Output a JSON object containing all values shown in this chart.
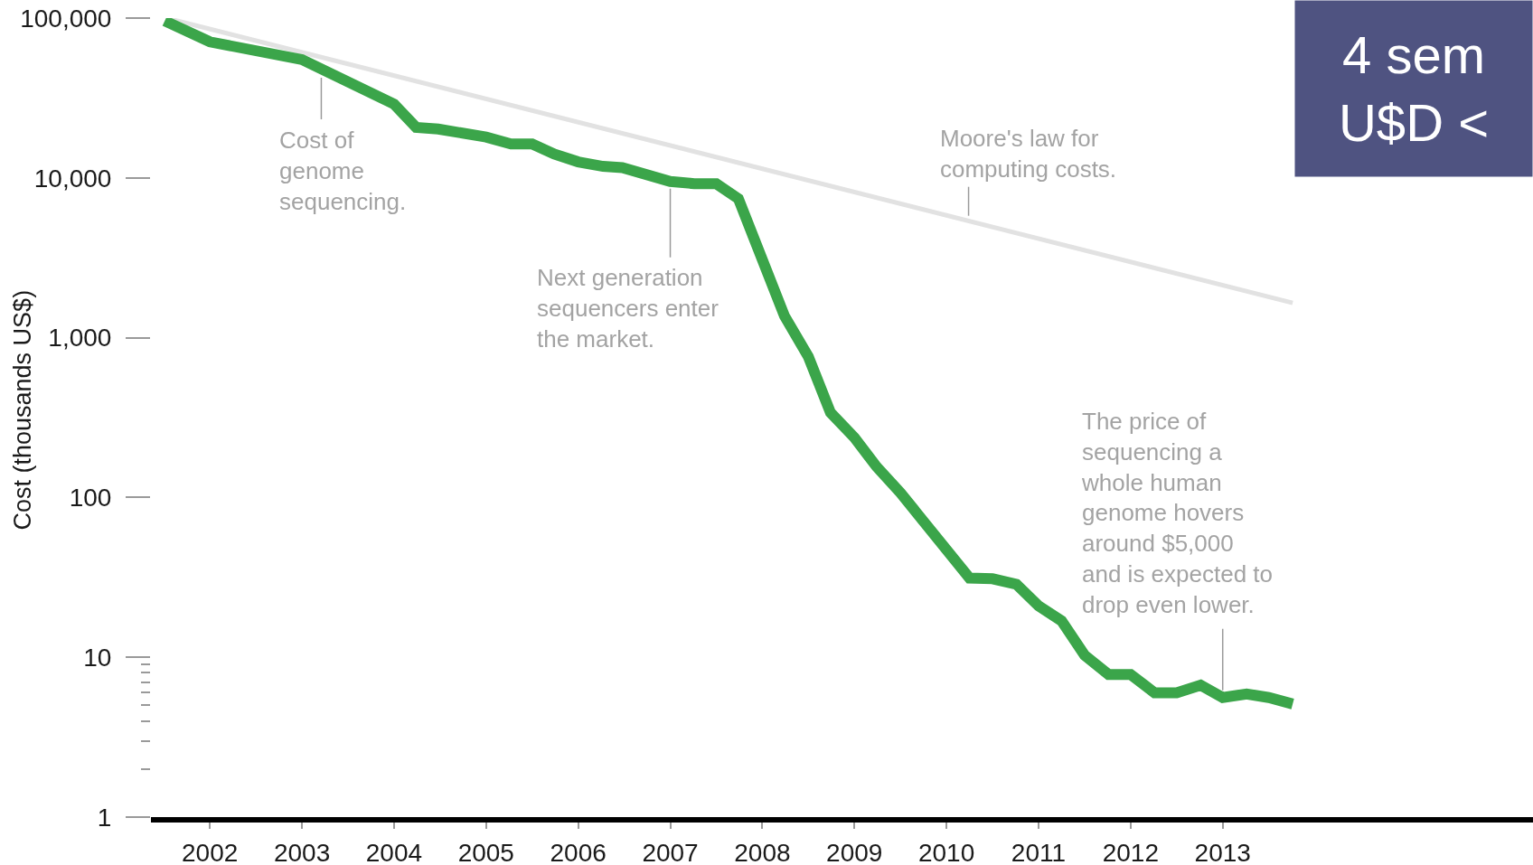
{
  "chart_data": {
    "type": "line",
    "ylabel": "Cost (thousands US$)",
    "log": true,
    "marker": "none",
    "line_style": "solid",
    "xlim": [
      2001.36,
      2016.37
    ],
    "xticks": [
      2002,
      2003,
      2004,
      2005,
      2006,
      2007,
      2008,
      2009,
      2010,
      2011,
      2012,
      2013
    ],
    "ylim": [
      1,
      100000
    ],
    "yticks": [
      1,
      {
        "value": 2,
        "label": null
      },
      {
        "value": 3,
        "label": null
      },
      {
        "value": 4,
        "label": null
      },
      {
        "value": 5,
        "label": null
      },
      {
        "value": 6,
        "label": null
      },
      {
        "value": 7,
        "label": null
      },
      {
        "value": 8,
        "label": null
      },
      {
        "value": 9,
        "label": null
      },
      10,
      100,
      {
        "value": 1000,
        "label": "1,000"
      },
      {
        "value": 10000,
        "label": "10,000"
      },
      {
        "value": 100000,
        "label": "100,000"
      }
    ],
    "series": [
      {
        "color": "#e2e2e2",
        "x": [
          2001.53,
          2013.76
        ],
        "values": [
          100000,
          1650
        ]
      },
      {
        "color": "#3ba54a",
        "x": [
          2001.51,
          2002.0,
          2003.0,
          2004.0,
          2004.24,
          2004.48,
          2005.0,
          2005.27,
          2005.5,
          2005.74,
          2006.0,
          2006.27,
          2006.48,
          2007.0,
          2007.26,
          2007.5,
          2007.74,
          2008.24,
          2008.5,
          2008.74,
          2009.0,
          2009.24,
          2009.5,
          2010.25,
          2010.5,
          2010.76,
          2011.0,
          2011.25,
          2011.5,
          2011.76,
          2012.0,
          2012.26,
          2012.5,
          2012.76,
          2013.0,
          2013.26,
          2013.5,
          2013.76
        ],
        "values": [
          96000,
          71000,
          55000,
          29000,
          20700,
          20200,
          18000,
          16300,
          16300,
          14100,
          12600,
          11800,
          11600,
          9500,
          9200,
          9200,
          7400,
          1370,
          760,
          340,
          237,
          156,
          107,
          31.3,
          31,
          28.6,
          21,
          16.9,
          10.3,
          7.8,
          7.8,
          6.0,
          6.0,
          6.7,
          5.6,
          5.9,
          5.6,
          5.1
        ]
      }
    ],
    "annotations": [
      {
        "text": "Cost of\ngenome\nsequencing.",
        "x": 2003.21,
        "y": 47000
      },
      {
        "text": "Next generation\nsequencers enter\nthe market.",
        "x": 2007.0,
        "y": 9500
      },
      {
        "text": "Moore's law for\ncomputing costs.",
        "x": 2010.24,
        "y": 5500
      },
      {
        "text": "The price of\nsequencing a\nwhole human\ngenome hovers\naround $5,000\nand is expected to\ndrop even lower.",
        "x": 2013.0,
        "y": 5.6
      },
      "4 sem\nU$D <"
    ]
  }
}
